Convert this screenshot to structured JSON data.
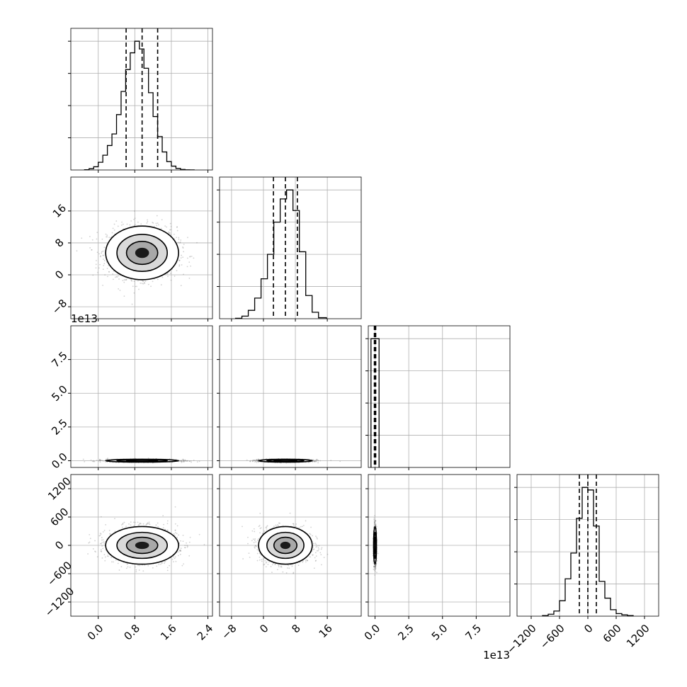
{
  "chart_data": {
    "type": "corner",
    "title": "",
    "grid": true,
    "parameters": [
      {
        "range": [
          -0.6,
          2.5
        ],
        "ticks": [
          0.0,
          0.8,
          1.6,
          2.4
        ],
        "tick_labels": [
          "0.0",
          "0.8",
          "1.6",
          "2.4"
        ],
        "offset": "",
        "quantiles": [
          0.61,
          0.96,
          1.3
        ],
        "hist": {
          "edges": [
            -0.3,
            -0.2,
            -0.1,
            0.0,
            0.1,
            0.2,
            0.3,
            0.4,
            0.5,
            0.6,
            0.7,
            0.8,
            0.9,
            1.0,
            1.1,
            1.2,
            1.3,
            1.4,
            1.5,
            1.6,
            1.7,
            1.8,
            1.9,
            2.0,
            2.1
          ],
          "counts": [
            0.2,
            1.0,
            2.5,
            6.0,
            11.5,
            19.0,
            28.0,
            43.0,
            61.0,
            78.0,
            91.0,
            100.0,
            94.0,
            79.0,
            60.0,
            41.5,
            26.0,
            14.0,
            6.5,
            3.0,
            1.2,
            0.4,
            0.15,
            0.05
          ]
        },
        "density": {
          "mean": 0.96,
          "sd": 0.38
        }
      },
      {
        "range": [
          -11,
          24.5
        ],
        "ticks": [
          -8,
          0,
          8,
          16
        ],
        "tick_labels": [
          "-8",
          "0",
          "8",
          "16"
        ],
        "offset": "",
        "quantiles": [
          2.5,
          5.5,
          8.5
        ],
        "hist": {
          "edges": [
            -7,
            -5.4,
            -3.8,
            -2.2,
            -0.6,
            1.0,
            2.6,
            4.2,
            5.8,
            7.4,
            9.0,
            10.6,
            12.2,
            13.8,
            15.8
          ],
          "counts": [
            0.3,
            2.0,
            6.5,
            16.0,
            31.0,
            50.0,
            75.0,
            93.0,
            100.0,
            84.0,
            52.0,
            18.0,
            5.0,
            0.8
          ]
        },
        "density": {
          "mean": 5.5,
          "sd": 3.2
        }
      },
      {
        "range": [
          -0.5,
          10.0
        ],
        "ticks": [
          0.0,
          2.5,
          5.0,
          7.5
        ],
        "tick_labels": [
          "0.0",
          "2.5",
          "5.0",
          "7.5"
        ],
        "offset": "1e13",
        "quantiles": [
          -0.05,
          0.0,
          0.05
        ],
        "hist": {
          "edges": [
            -0.3,
            0.0,
            0.3
          ],
          "counts": [
            100.0,
            100.0
          ]
        },
        "density": {
          "mean": 0.0,
          "sd": 0.05
        }
      },
      {
        "range": [
          -1500,
          1500
        ],
        "ticks": [
          -1200,
          -600,
          0,
          600,
          1200
        ],
        "tick_labels": [
          "-1200",
          "-600",
          "0",
          "600",
          "1200"
        ],
        "offset": "",
        "quantiles": [
          -180,
          0,
          180
        ],
        "hist": {
          "edges": [
            -960,
            -840,
            -720,
            -600,
            -480,
            -360,
            -240,
            -120,
            0,
            120,
            240,
            360,
            480,
            600,
            720,
            840,
            960
          ],
          "counts": [
            0.5,
            1.5,
            4.0,
            12.0,
            29.0,
            49.0,
            76.0,
            100.0,
            98.0,
            70.0,
            27.0,
            14.0,
            5.0,
            2.0,
            1.0,
            0.5
          ]
        },
        "density": {
          "mean": 0,
          "sd": 190
        }
      }
    ],
    "colors": {
      "line": "#000000",
      "grid": "#b0b0b0",
      "points": "#7f7f7f",
      "fill_light": "#d9d9d9",
      "fill_mid": "#a8a8a8",
      "fill_dark": "#1a1a1a"
    }
  }
}
